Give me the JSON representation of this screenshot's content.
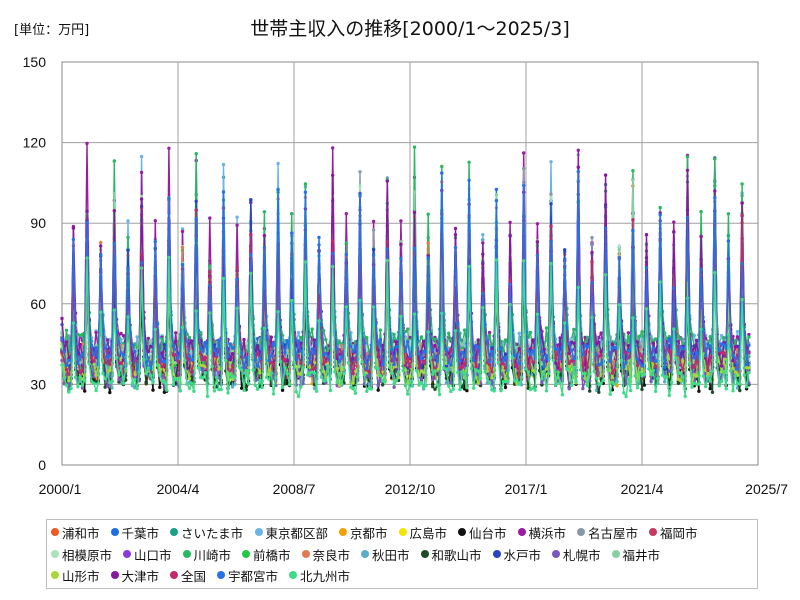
{
  "chart_data": {
    "type": "line",
    "title": "世帯主収入の推移[2000/1～2025/3]",
    "unit_label": "[単位：万円]",
    "x_ticks": [
      "2000/1",
      "2004/4",
      "2008/7",
      "2012/10",
      "2017/1",
      "2021/4",
      "2025/7"
    ],
    "y_ticks": [
      "0",
      "30",
      "60",
      "90",
      "120",
      "150"
    ],
    "xlim": [
      "2000/1",
      "2025/7"
    ],
    "ylim": [
      0,
      150
    ],
    "grid": true,
    "legend_position": "bottom",
    "x_range": [
      "2000/1",
      "2025/3"
    ],
    "series": [
      {
        "name": "浦和市",
        "color": "#ee5a24",
        "base": 38,
        "peak": 1.0
      },
      {
        "name": "千葉市",
        "color": "#1e6fe0",
        "base": 41,
        "peak": 1.0
      },
      {
        "name": "さいたま市",
        "color": "#1aa088",
        "base": 39,
        "peak": 1.12
      },
      {
        "name": "東京都区部",
        "color": "#6ab4e8",
        "base": 44,
        "peak": 1.05
      },
      {
        "name": "京都市",
        "color": "#f0a000",
        "base": 35,
        "peak": 0.9
      },
      {
        "name": "広島市",
        "color": "#f5e400",
        "base": 37,
        "peak": 0.9
      },
      {
        "name": "仙台市",
        "color": "#111111",
        "base": 33,
        "peak": 0.85
      },
      {
        "name": "横浜市",
        "color": "#9b1ca0",
        "base": 44,
        "peak": 1.08
      },
      {
        "name": "名古屋市",
        "color": "#8a97a8",
        "base": 42,
        "peak": 1.0
      },
      {
        "name": "福岡市",
        "color": "#c8385e",
        "base": 36,
        "peak": 0.9
      },
      {
        "name": "相模原市",
        "color": "#a8e4b8",
        "base": 40,
        "peak": 0.95
      },
      {
        "name": "山口市",
        "color": "#8a3ad8",
        "base": 36,
        "peak": 0.85
      },
      {
        "name": "川崎市",
        "color": "#28b860",
        "base": 45,
        "peak": 1.05
      },
      {
        "name": "前橋市",
        "color": "#22c84a",
        "base": 38,
        "peak": 0.95
      },
      {
        "name": "奈良市",
        "color": "#e07a50",
        "base": 40,
        "peak": 1.0
      },
      {
        "name": "秋田市",
        "color": "#5aaec8",
        "base": 34,
        "peak": 0.85
      },
      {
        "name": "和歌山市",
        "color": "#1d4a28",
        "base": 33,
        "peak": 0.85
      },
      {
        "name": "水戸市",
        "color": "#2844c0",
        "base": 39,
        "peak": 0.95
      },
      {
        "name": "札幌市",
        "color": "#7a58c0",
        "base": 34,
        "peak": 0.85
      },
      {
        "name": "福井市",
        "color": "#88d0a0",
        "base": 41,
        "peak": 0.95
      },
      {
        "name": "山形市",
        "color": "#a8d838",
        "base": 36,
        "peak": 0.85
      },
      {
        "name": "大津市",
        "color": "#8818a0",
        "base": 42,
        "peak": 1.0
      },
      {
        "name": "全国",
        "color": "#c02870",
        "base": 38,
        "peak": 0.9
      },
      {
        "name": "宇都宮市",
        "color": "#2870e8",
        "base": 41,
        "peak": 1.02
      },
      {
        "name": "北九州市",
        "color": "#3cdc88",
        "base": 31,
        "peak": 0.85
      }
    ]
  }
}
